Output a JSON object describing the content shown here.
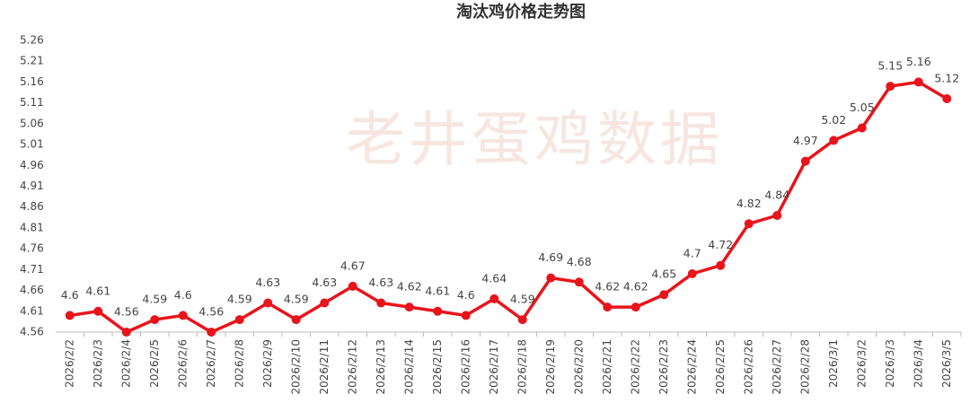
{
  "chart_data": {
    "type": "line",
    "title": "淘汰鸡价格走势图",
    "watermark": "老井蛋鸡数据",
    "categories": [
      "2026/2/2",
      "2026/2/3",
      "2026/2/4",
      "2026/2/5",
      "2026/2/6",
      "2026/2/7",
      "2026/2/8",
      "2026/2/9",
      "2026/2/10",
      "2026/2/11",
      "2026/2/12",
      "2026/2/13",
      "2026/2/14",
      "2026/2/15",
      "2026/2/16",
      "2026/2/17",
      "2026/2/18",
      "2026/2/19",
      "2026/2/20",
      "2026/2/21",
      "2026/2/22",
      "2026/2/23",
      "2026/2/24",
      "2026/2/25",
      "2026/2/26",
      "2026/2/27",
      "2026/2/28",
      "2026/3/1",
      "2026/3/2",
      "2026/3/3",
      "2026/3/4",
      "2026/3/5"
    ],
    "values": [
      4.6,
      4.61,
      4.56,
      4.59,
      4.6,
      4.56,
      4.59,
      4.63,
      4.59,
      4.63,
      4.67,
      4.63,
      4.62,
      4.61,
      4.6,
      4.64,
      4.59,
      4.69,
      4.68,
      4.62,
      4.62,
      4.65,
      4.7,
      4.72,
      4.82,
      4.84,
      4.97,
      5.02,
      5.05,
      5.15,
      5.16,
      5.12
    ],
    "color": "#e8141b",
    "ylim": [
      4.56,
      5.26
    ],
    "yticks": [
      4.56,
      4.61,
      4.66,
      4.71,
      4.76,
      4.81,
      4.86,
      4.91,
      4.96,
      5.01,
      5.06,
      5.11,
      5.16,
      5.21,
      5.26
    ],
    "grid": false
  }
}
